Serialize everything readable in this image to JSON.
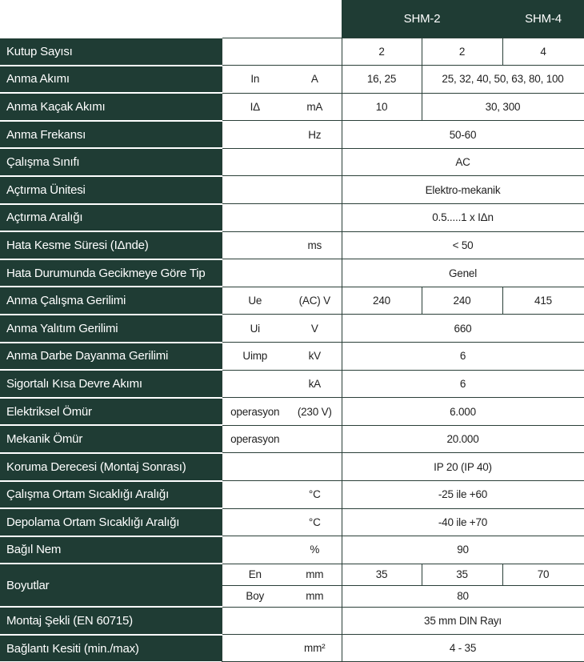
{
  "header": {
    "models": [
      {
        "label": "SHM-2",
        "span": 2
      },
      {
        "label": "SHM-4",
        "span": 1
      }
    ]
  },
  "colors": {
    "dark_green": "#1f3c34"
  },
  "rows": [
    {
      "label": "Kutup Sayısı",
      "symbol": "",
      "unit": "",
      "values": [
        {
          "text": "2",
          "span": 1
        },
        {
          "text": "2",
          "span": 1
        },
        {
          "text": "4",
          "span": 1
        }
      ]
    },
    {
      "label": "Anma Akımı",
      "symbol": "In",
      "unit": "A",
      "values": [
        {
          "text": "16, 25",
          "span": 1
        },
        {
          "text": "25, 32, 40, 50, 63, 80, 100",
          "span": 2
        }
      ]
    },
    {
      "label": "Anma Kaçak Akımı",
      "symbol": "IΔ",
      "unit": "mA",
      "values": [
        {
          "text": "10",
          "span": 1
        },
        {
          "text": "30, 300",
          "span": 2
        }
      ]
    },
    {
      "label": "Anma Frekansı",
      "symbol": "",
      "unit": "Hz",
      "values": [
        {
          "text": "50-60",
          "span": 3
        }
      ]
    },
    {
      "label": "Çalışma Sınıfı",
      "symbol": "",
      "unit": "",
      "values": [
        {
          "text": "AC",
          "span": 3
        }
      ]
    },
    {
      "label": "Açtırma Ünitesi",
      "symbol": "",
      "unit": "",
      "values": [
        {
          "text": "Elektro-mekanik",
          "span": 3
        }
      ]
    },
    {
      "label": "Açtırma Aralığı",
      "symbol": "",
      "unit": "",
      "values": [
        {
          "text": "0.5.....1 x IΔn",
          "span": 3
        }
      ]
    },
    {
      "label": "Hata Kesme Süresi (IΔnde)",
      "symbol": "",
      "unit": "ms",
      "values": [
        {
          "text": "< 50",
          "span": 3
        }
      ]
    },
    {
      "label": "Hata Durumunda Gecikmeye Göre Tip",
      "symbol": "",
      "unit": "",
      "values": [
        {
          "text": "Genel",
          "span": 3
        }
      ]
    },
    {
      "label": "Anma Çalışma Gerilimi",
      "symbol": "Ue",
      "unit": "(AC) V",
      "values": [
        {
          "text": "240",
          "span": 1
        },
        {
          "text": "240",
          "span": 1
        },
        {
          "text": "415",
          "span": 1
        }
      ]
    },
    {
      "label": "Anma Yalıtım Gerilimi",
      "symbol": "Ui",
      "unit": "V",
      "values": [
        {
          "text": "660",
          "span": 3
        }
      ]
    },
    {
      "label": "Anma Darbe Dayanma Gerilimi",
      "symbol": "Uimp",
      "unit": "kV",
      "values": [
        {
          "text": "6",
          "span": 3
        }
      ]
    },
    {
      "label": "Sigortalı Kısa Devre Akımı",
      "symbol": "",
      "unit": "kA",
      "values": [
        {
          "text": "6",
          "span": 3
        }
      ]
    },
    {
      "label": "Elektriksel Ömür",
      "symbol": "operasyon",
      "unit": "(230 V)",
      "values": [
        {
          "text": "6.000",
          "span": 3
        }
      ]
    },
    {
      "label": "Mekanik Ömür",
      "symbol": "operasyon",
      "unit": "",
      "values": [
        {
          "text": "20.000",
          "span": 3
        }
      ]
    },
    {
      "label": "Koruma Derecesi (Montaj Sonrası)",
      "symbol": "",
      "unit": "",
      "values": [
        {
          "text": "IP 20 (IP 40)",
          "span": 3
        }
      ]
    },
    {
      "label": "Çalışma Ortam Sıcaklığı Aralığı",
      "symbol": "",
      "unit": "°C",
      "values": [
        {
          "text": "-25 ile +60",
          "span": 3
        }
      ]
    },
    {
      "label": "Depolama Ortam Sıcaklığı Aralığı",
      "symbol": "",
      "unit": "°C",
      "values": [
        {
          "text": "-40 ile +70",
          "span": 3
        }
      ]
    },
    {
      "label": "Bağıl Nem",
      "symbol": "",
      "unit": "%",
      "values": [
        {
          "text": "90",
          "span": 3
        }
      ]
    },
    {
      "label": "Boyutlar",
      "sub": [
        {
          "symbol": "En",
          "unit": "mm",
          "values": [
            {
              "text": "35",
              "span": 1
            },
            {
              "text": "35",
              "span": 1
            },
            {
              "text": "70",
              "span": 1
            }
          ]
        },
        {
          "symbol": "Boy",
          "unit": "mm",
          "values": [
            {
              "text": "80",
              "span": 3
            }
          ]
        }
      ]
    },
    {
      "label": "Montaj Şekli (EN 60715)",
      "symbol": "",
      "unit": "",
      "values": [
        {
          "text": "35 mm DIN Rayı",
          "span": 3
        }
      ]
    },
    {
      "label": "Bağlantı Kesiti (min./max)",
      "symbol": "",
      "unit": "mm²",
      "values": [
        {
          "text": "4 - 35",
          "span": 3
        }
      ]
    }
  ]
}
